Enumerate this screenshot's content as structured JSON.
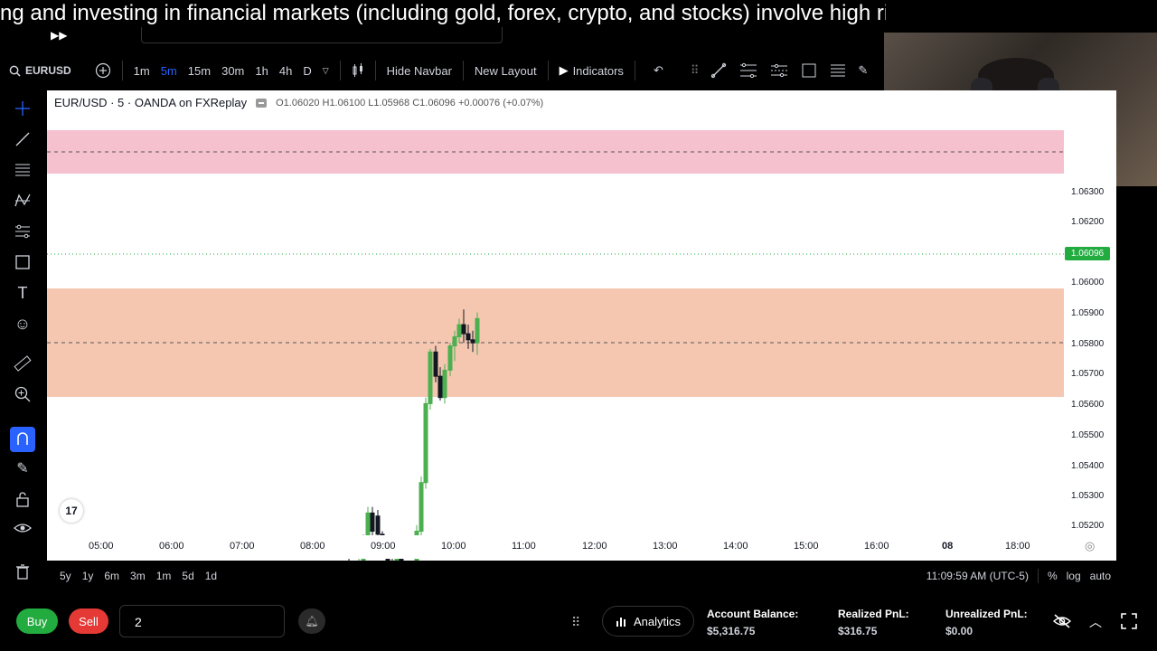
{
  "banner": {
    "text": "ng and investing in financial markets (including gold, forex, crypto, and stocks) involve high risk and may result"
  },
  "toolbar": {
    "symbol": "EURUSD",
    "intervals": [
      "1m",
      "5m",
      "15m",
      "30m",
      "1h",
      "4h",
      "D"
    ],
    "active_interval": "5m",
    "hide_navbar": "Hide Navbar",
    "new_layout": "New Layout",
    "indicators": "Indicators"
  },
  "chart": {
    "title": "EUR/USD · 5 · OANDA on FXReplay",
    "ohlc": "O1.06020 H1.06100 L1.05968 C1.06096 +0.00076 (+0.07%)",
    "current_price": "1.06096",
    "price_labels": [
      "1.06300",
      "1.06200",
      "1.06000",
      "1.05900",
      "1.05800",
      "1.05700",
      "1.05600",
      "1.05500",
      "1.05400",
      "1.05300",
      "1.05200"
    ],
    "time_labels": [
      "05:00",
      "06:00",
      "07:00",
      "08:00",
      "09:00",
      "10:00",
      "11:00",
      "12:00",
      "13:00",
      "14:00",
      "15:00",
      "16:00",
      "08",
      "18:00"
    ],
    "tv_logo": "17",
    "colors": {
      "supply_zone": "#f5c0cf",
      "demand_zone": "#f5c6b0",
      "bull": "#4caf50",
      "bear": "#131722",
      "current": "#22ab3f"
    }
  },
  "ranges": [
    "5y",
    "1y",
    "6m",
    "3m",
    "1m",
    "5d",
    "1d"
  ],
  "status": {
    "clock": "11:09:59 AM (UTC-5)",
    "percent": "%",
    "log": "log",
    "auto": "auto"
  },
  "trade": {
    "buy": "Buy",
    "sell": "Sell",
    "quantity": "2",
    "analytics": "Analytics",
    "account_balance_label": "Account Balance:",
    "account_balance": "$5,316.75",
    "realized_label": "Realized PnL:",
    "realized": "$316.75",
    "unrealized_label": "Unrealized PnL:",
    "unrealized": "$0.00"
  }
}
